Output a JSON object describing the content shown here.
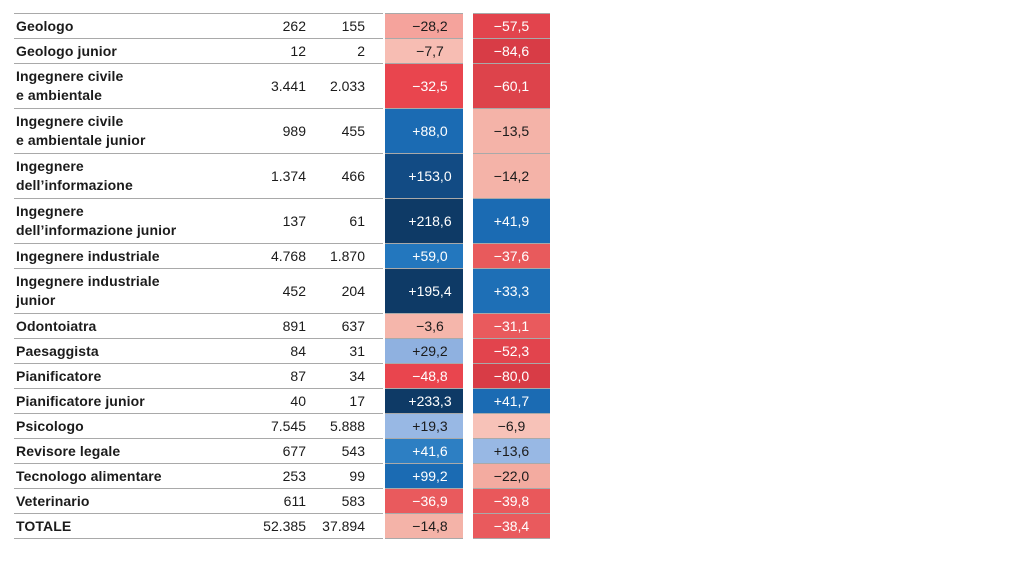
{
  "chart_data": {
    "type": "table",
    "rows": [
      {
        "name": "Geologo",
        "a": "262",
        "b": "155",
        "p1": "−28,2",
        "p2": "−57,5",
        "c1": "#f5a39c",
        "c2": "#e2444d",
        "lines": 1
      },
      {
        "name": "Geologo junior",
        "a": "12",
        "b": "2",
        "p1": "−7,7",
        "p2": "−84,6",
        "c1": "#f7bdb3",
        "c2": "#d83c46",
        "lines": 1
      },
      {
        "name": "Ingegnere civile\ne ambientale",
        "a": "3.441",
        "b": "2.033",
        "p1": "−32,5",
        "p2": "−60,1",
        "c1": "#e9454e",
        "c2": "#dd434b",
        "lines": 2
      },
      {
        "name": "Ingegnere civile\ne ambientale junior",
        "a": "989",
        "b": "455",
        "p1": "+88,0",
        "p2": "−13,5",
        "c1": "#1b6bb3",
        "c2": "#f4b3a8",
        "lines": 2
      },
      {
        "name": "Ingegnere\ndell’informazione",
        "a": "1.374",
        "b": "466",
        "p1": "+153,0",
        "p2": "−14,2",
        "c1": "#124b84",
        "c2": "#f4b3a8",
        "lines": 2
      },
      {
        "name": "Ingegnere\ndell’informazione junior",
        "a": "137",
        "b": "61",
        "p1": "+218,6",
        "p2": "+41,9",
        "c1": "#0e3a66",
        "c2": "#1b6bb3",
        "lines": 2
      },
      {
        "name": "Ingegnere industriale",
        "a": "4.768",
        "b": "1.870",
        "p1": "+59,0",
        "p2": "−37,6",
        "c1": "#2377be",
        "c2": "#e85a5c",
        "lines": 1
      },
      {
        "name": "Ingegnere industriale\njunior",
        "a": "452",
        "b": "204",
        "p1": "+195,4",
        "p2": "+33,3",
        "c1": "#0e3a66",
        "c2": "#1e6fb6",
        "lines": 2
      },
      {
        "name": "Odontoiatra",
        "a": "891",
        "b": "637",
        "p1": "−3,6",
        "p2": "−31,1",
        "c1": "#f5b6ab",
        "c2": "#e95a5d",
        "lines": 1
      },
      {
        "name": "Paesaggista",
        "a": "84",
        "b": "31",
        "p1": "+29,2",
        "p2": "−52,3",
        "c1": "#8fb1e0",
        "c2": "#e2444d",
        "lines": 1
      },
      {
        "name": "Pianificatore",
        "a": "87",
        "b": "34",
        "p1": "−48,8",
        "p2": "−80,0",
        "c1": "#e9454e",
        "c2": "#d83c46",
        "lines": 1
      },
      {
        "name": "Pianificatore junior",
        "a": "40",
        "b": "17",
        "p1": "+233,3",
        "p2": "+41,7",
        "c1": "#0e3a66",
        "c2": "#1b6bb3",
        "lines": 1
      },
      {
        "name": "Psicologo",
        "a": "7.545",
        "b": "5.888",
        "p1": "+19,3",
        "p2": "−6,9",
        "c1": "#98b8e4",
        "c2": "#f7c2b8",
        "lines": 1
      },
      {
        "name": "Revisore legale",
        "a": "677",
        "b": "543",
        "p1": "+41,6",
        "p2": "+13,6",
        "c1": "#2d7fc3",
        "c2": "#98b8e4",
        "lines": 1
      },
      {
        "name": "Tecnologo alimentare",
        "a": "253",
        "b": "99",
        "p1": "+99,2",
        "p2": "−22,0",
        "c1": "#1b6bb3",
        "c2": "#f3aba0",
        "lines": 1
      },
      {
        "name": "Veterinario",
        "a": "611",
        "b": "583",
        "p1": "−36,9",
        "p2": "−39,8",
        "c1": "#e95a5d",
        "c2": "#e9585b",
        "lines": 1
      },
      {
        "name": "TOTALE",
        "a": "52.385",
        "b": "37.894",
        "p1": "−14,8",
        "p2": "−38,4",
        "c1": "#f4b3a8",
        "c2": "#e95a5d",
        "lines": 1
      }
    ]
  },
  "colors": {
    "text_dark": "#1b1b1b",
    "text_light": "#ffffff",
    "rule": "#a9a9a9"
  }
}
